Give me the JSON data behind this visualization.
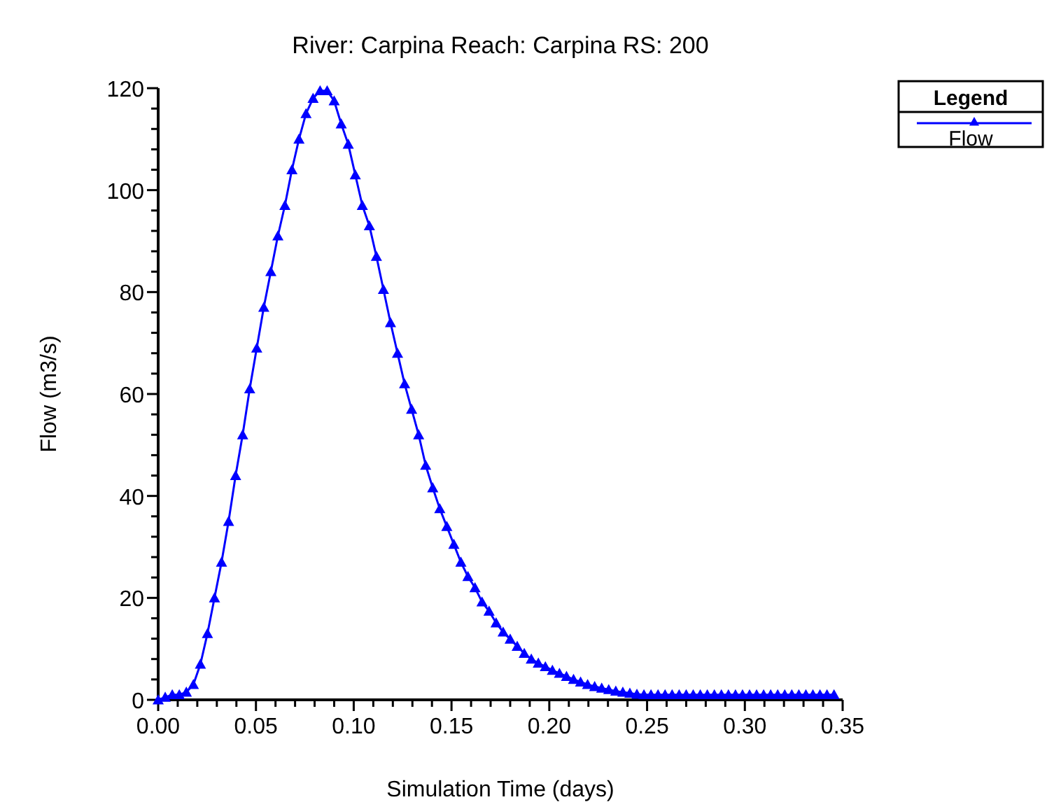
{
  "chart_data": {
    "type": "line",
    "title": "River: Carpina  Reach: Carpina  RS: 200",
    "xlabel": "Simulation Time (days)",
    "ylabel": "Flow  (m3/s)",
    "legend_title": "Legend",
    "legend": "top right",
    "marker": "triangle",
    "line_style": "solid",
    "x": [
      0,
      0.0036,
      0.0072,
      0.0108,
      0.0144,
      0.018,
      0.0216,
      0.0252,
      0.0288,
      0.0324,
      0.036,
      0.0396,
      0.0432,
      0.0468,
      0.0504,
      0.054,
      0.0576,
      0.0612,
      0.0648,
      0.0684,
      0.072,
      0.0756,
      0.0792,
      0.0828,
      0.0864,
      0.09,
      0.0936,
      0.0972,
      0.1008,
      0.1044,
      0.108,
      0.1116,
      0.1152,
      0.1188,
      0.1224,
      0.126,
      0.1296,
      0.1332,
      0.1368,
      0.1404,
      0.144,
      0.1476,
      0.1512,
      0.1548,
      0.1584,
      0.162,
      0.1656,
      0.1692,
      0.1728,
      0.1764,
      0.18,
      0.1836,
      0.1872,
      0.1908,
      0.1944,
      0.198,
      0.2016,
      0.2052,
      0.2088,
      0.2124,
      0.216,
      0.2196,
      0.2232,
      0.2268,
      0.2304,
      0.234,
      0.2376,
      0.2412,
      0.2448,
      0.2484,
      0.252,
      0.2556,
      0.2592,
      0.2628,
      0.2664,
      0.27,
      0.2736,
      0.2772,
      0.2808,
      0.2844,
      0.288,
      0.2916,
      0.2952,
      0.2988,
      0.3024,
      0.306,
      0.3096,
      0.3132,
      0.3168,
      0.3204,
      0.324,
      0.3276,
      0.3312,
      0.3348,
      0.3384,
      0.342,
      0.3456
    ],
    "series": [
      {
        "name": "Flow",
        "color": "#0000ff",
        "values": [
          0,
          0.5,
          1,
          1,
          1.5,
          3,
          7,
          13,
          20,
          27,
          35,
          44,
          52,
          61,
          69,
          77,
          84,
          91,
          97,
          104,
          110,
          115,
          118,
          119.5,
          119.5,
          117.5,
          113,
          109,
          103,
          97,
          93,
          87,
          80.5,
          74,
          68,
          62,
          57,
          52,
          46,
          41.6,
          37.5,
          34,
          30.5,
          27,
          24.2,
          22,
          19.2,
          17.4,
          15.1,
          13.3,
          11.9,
          10.5,
          9.1,
          8,
          7.2,
          6.5,
          5.8,
          5.2,
          4.6,
          4,
          3.5,
          3,
          2.6,
          2.3,
          2,
          1.7,
          1.5,
          1.3,
          1.1,
          1,
          1,
          1,
          1,
          1,
          1,
          1,
          1,
          1,
          1,
          1,
          1,
          1,
          1,
          1,
          1,
          1,
          1,
          1,
          1,
          1,
          1,
          1,
          1,
          1,
          1,
          1,
          1
        ]
      }
    ],
    "xlim": [
      0,
      0.35
    ],
    "ylim": [
      0,
      120
    ],
    "xticks": [
      {
        "value": 0,
        "label": "0.00"
      },
      {
        "value": 0.01,
        "label": null
      },
      {
        "value": 0.02,
        "label": null
      },
      {
        "value": 0.03,
        "label": null
      },
      {
        "value": 0.04,
        "label": null
      },
      {
        "value": 0.05,
        "label": "0.05"
      },
      {
        "value": 0.06,
        "label": null
      },
      {
        "value": 0.07,
        "label": null
      },
      {
        "value": 0.08,
        "label": null
      },
      {
        "value": 0.09,
        "label": null
      },
      {
        "value": 0.1,
        "label": "0.10"
      },
      {
        "value": 0.11,
        "label": null
      },
      {
        "value": 0.12,
        "label": null
      },
      {
        "value": 0.13,
        "label": null
      },
      {
        "value": 0.14,
        "label": null
      },
      {
        "value": 0.15,
        "label": "0.15"
      },
      {
        "value": 0.16,
        "label": null
      },
      {
        "value": 0.17,
        "label": null
      },
      {
        "value": 0.18,
        "label": null
      },
      {
        "value": 0.19,
        "label": null
      },
      {
        "value": 0.2,
        "label": "0.20"
      },
      {
        "value": 0.21,
        "label": null
      },
      {
        "value": 0.22,
        "label": null
      },
      {
        "value": 0.23,
        "label": null
      },
      {
        "value": 0.24,
        "label": null
      },
      {
        "value": 0.25,
        "label": "0.25"
      },
      {
        "value": 0.26,
        "label": null
      },
      {
        "value": 0.27,
        "label": null
      },
      {
        "value": 0.28,
        "label": null
      },
      {
        "value": 0.29,
        "label": null
      },
      {
        "value": 0.3,
        "label": "0.30"
      },
      {
        "value": 0.31,
        "label": null
      },
      {
        "value": 0.32,
        "label": null
      },
      {
        "value": 0.33,
        "label": null
      },
      {
        "value": 0.34,
        "label": null
      },
      {
        "value": 0.35,
        "label": "0.35"
      }
    ],
    "yticks": [
      0,
      {
        "value": 4,
        "label": null
      },
      {
        "value": 8,
        "label": null
      },
      {
        "value": 12,
        "label": null
      },
      {
        "value": 16,
        "label": null
      },
      20,
      {
        "value": 24,
        "label": null
      },
      {
        "value": 28,
        "label": null
      },
      {
        "value": 32,
        "label": null
      },
      {
        "value": 36,
        "label": null
      },
      40,
      {
        "value": 44,
        "label": null
      },
      {
        "value": 48,
        "label": null
      },
      {
        "value": 52,
        "label": null
      },
      {
        "value": 56,
        "label": null
      },
      60,
      {
        "value": 64,
        "label": null
      },
      {
        "value": 68,
        "label": null
      },
      {
        "value": 72,
        "label": null
      },
      {
        "value": 76,
        "label": null
      },
      80,
      {
        "value": 84,
        "label": null
      },
      {
        "value": 88,
        "label": null
      },
      {
        "value": 92,
        "label": null
      },
      {
        "value": 96,
        "label": null
      },
      100,
      {
        "value": 104,
        "label": null
      },
      {
        "value": 108,
        "label": null
      },
      {
        "value": 112,
        "label": null
      },
      {
        "value": 116,
        "label": null
      },
      120
    ]
  }
}
